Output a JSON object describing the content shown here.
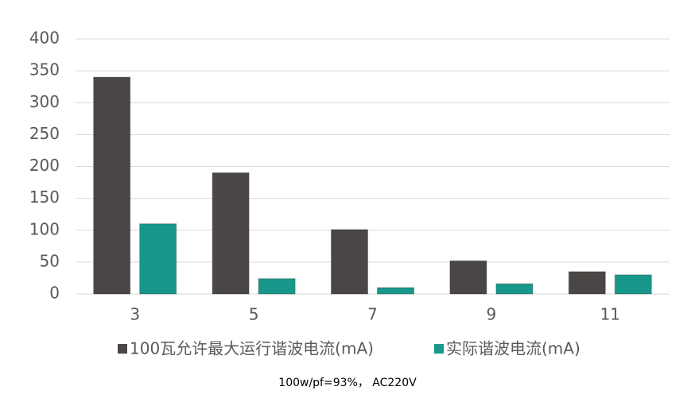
{
  "chart_data": {
    "type": "bar",
    "categories": [
      "3",
      "5",
      "7",
      "9",
      "11"
    ],
    "series": [
      {
        "name": "100瓦允许最大运行谐波电流(mA)",
        "color": "#4a4645",
        "values": [
          340,
          190,
          101,
          52,
          35
        ]
      },
      {
        "name": "实际谐波电流(mA)",
        "color": "#17988a",
        "values": [
          110,
          24,
          10,
          16,
          30
        ]
      }
    ],
    "ylim": [
      0,
      400
    ],
    "yticks": [
      0,
      50,
      100,
      150,
      200,
      250,
      300,
      350,
      400
    ],
    "grid": true,
    "legend": "bottom",
    "annotation": "100w/pf=93%， AC220V"
  }
}
